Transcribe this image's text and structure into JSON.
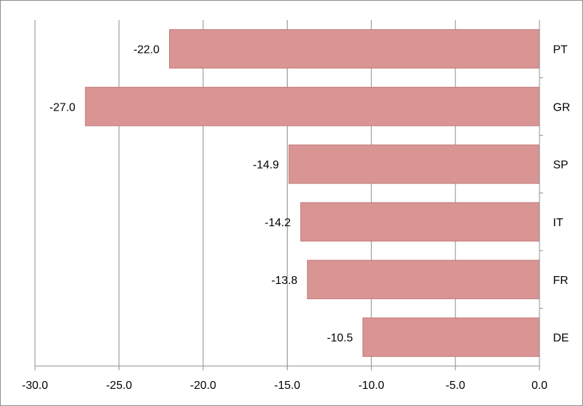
{
  "chart_data": {
    "type": "bar",
    "orientation": "horizontal",
    "categories": [
      "PT",
      "GR",
      "SP",
      "IT",
      "FR",
      "DE"
    ],
    "values": [
      -22.0,
      -27.0,
      -14.9,
      -14.2,
      -13.8,
      -10.5
    ],
    "value_labels": [
      "-22.0",
      "-27.0",
      "-14.9",
      "-14.2",
      "-13.8",
      "-10.5"
    ],
    "xlim": [
      -30,
      0
    ],
    "x_ticks": [
      -30,
      -25,
      -20,
      -15,
      -10,
      -5,
      0
    ],
    "x_tick_labels": [
      "-30.0",
      "-25.0",
      "-20.0",
      "-15.0",
      "-10.0",
      "-5.0",
      "0.0"
    ],
    "grid": "vertical",
    "legend": "none",
    "bar_color": "#d99594",
    "bar_edge_color": "#c07876",
    "grid_color": "#8c8c8c",
    "title": "",
    "xlabel": "",
    "ylabel": ""
  }
}
